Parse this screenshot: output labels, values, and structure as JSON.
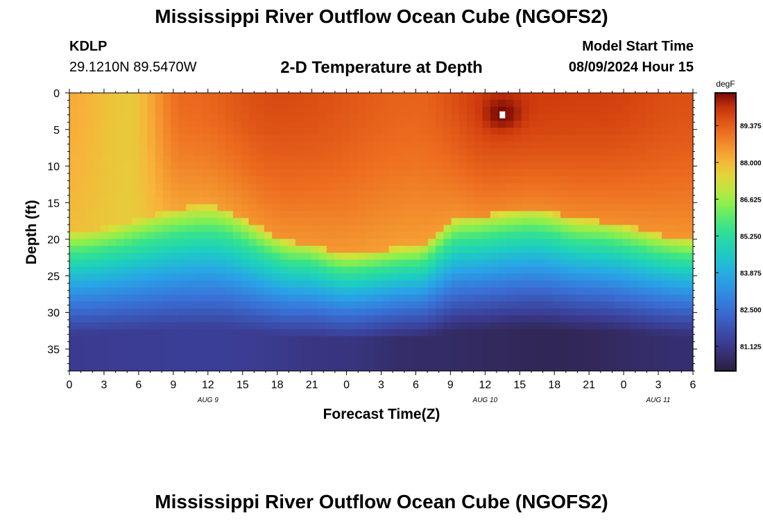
{
  "header": {
    "title": "Mississippi River Outflow Ocean Cube (NGOFS2)",
    "station_id": "KDLP",
    "station_coords": "29.1210N  89.5470W",
    "subtitle": "2-D Temperature at Depth",
    "model_start_label": "Model Start Time",
    "model_start_time": "08/09/2024 Hour 15"
  },
  "footer": {
    "title": "Mississippi River Outflow Ocean Cube (NGOFS2)"
  },
  "chart_data": {
    "type": "heatmap",
    "xlabel": "Forecast Time(Z)",
    "ylabel": "Depth (ft)",
    "x_hours_range": [
      0,
      54
    ],
    "x_tick_labels": [
      "0",
      "3",
      "6",
      "9",
      "12",
      "15",
      "18",
      "21",
      "0",
      "3",
      "6",
      "9",
      "12",
      "15",
      "18",
      "21",
      "0",
      "3",
      "6"
    ],
    "day_labels": [
      {
        "label": "AUG 9",
        "hour": 12
      },
      {
        "label": "AUG 10",
        "hour": 36
      },
      {
        "label": "AUG 11",
        "hour": 51
      }
    ],
    "y_range": [
      0,
      38
    ],
    "y_ticks": [
      0,
      5,
      10,
      15,
      20,
      25,
      30,
      35
    ],
    "y_reversed": true,
    "colorbar": {
      "unit": "degF",
      "min": 80.2,
      "max": 90.6,
      "tick_labels": [
        "89.375",
        "88.000",
        "86.625",
        "85.250",
        "83.875",
        "82.500",
        "81.125"
      ],
      "tick_values": [
        89.375,
        88.0,
        86.625,
        85.25,
        83.875,
        82.5,
        81.125
      ]
    },
    "thermocline_depth_ft": [
      {
        "hour": 0,
        "depth": 19
      },
      {
        "hour": 12,
        "depth": 15.5
      },
      {
        "hour": 20,
        "depth": 20.5
      },
      {
        "hour": 24,
        "depth": 22
      },
      {
        "hour": 30,
        "depth": 21
      },
      {
        "hour": 34,
        "depth": 17
      },
      {
        "hour": 40,
        "depth": 16
      },
      {
        "hour": 45,
        "depth": 17.5
      },
      {
        "hour": 54,
        "depth": 20
      }
    ],
    "surface_temp_degF": [
      {
        "hour": 0,
        "value": 88.2
      },
      {
        "hour": 5,
        "value": 87.7
      },
      {
        "hour": 10,
        "value": 89.2
      },
      {
        "hour": 18,
        "value": 89.7
      },
      {
        "hour": 30,
        "value": 89.3
      },
      {
        "hour": 37,
        "value": 90.0
      },
      {
        "hour": 45,
        "value": 89.9
      },
      {
        "hour": 54,
        "value": 89.6
      }
    ],
    "bottom_temp_degF": [
      {
        "hour": 0,
        "value": 81.2
      },
      {
        "hour": 12,
        "value": 81.3
      },
      {
        "hour": 24,
        "value": 81.0
      },
      {
        "hour": 30,
        "value": 80.7
      },
      {
        "hour": 42,
        "value": 80.5
      },
      {
        "hour": 54,
        "value": 80.8
      }
    ],
    "hot_spot": {
      "hour": 37.5,
      "depth": 3,
      "value": 90.6
    }
  }
}
